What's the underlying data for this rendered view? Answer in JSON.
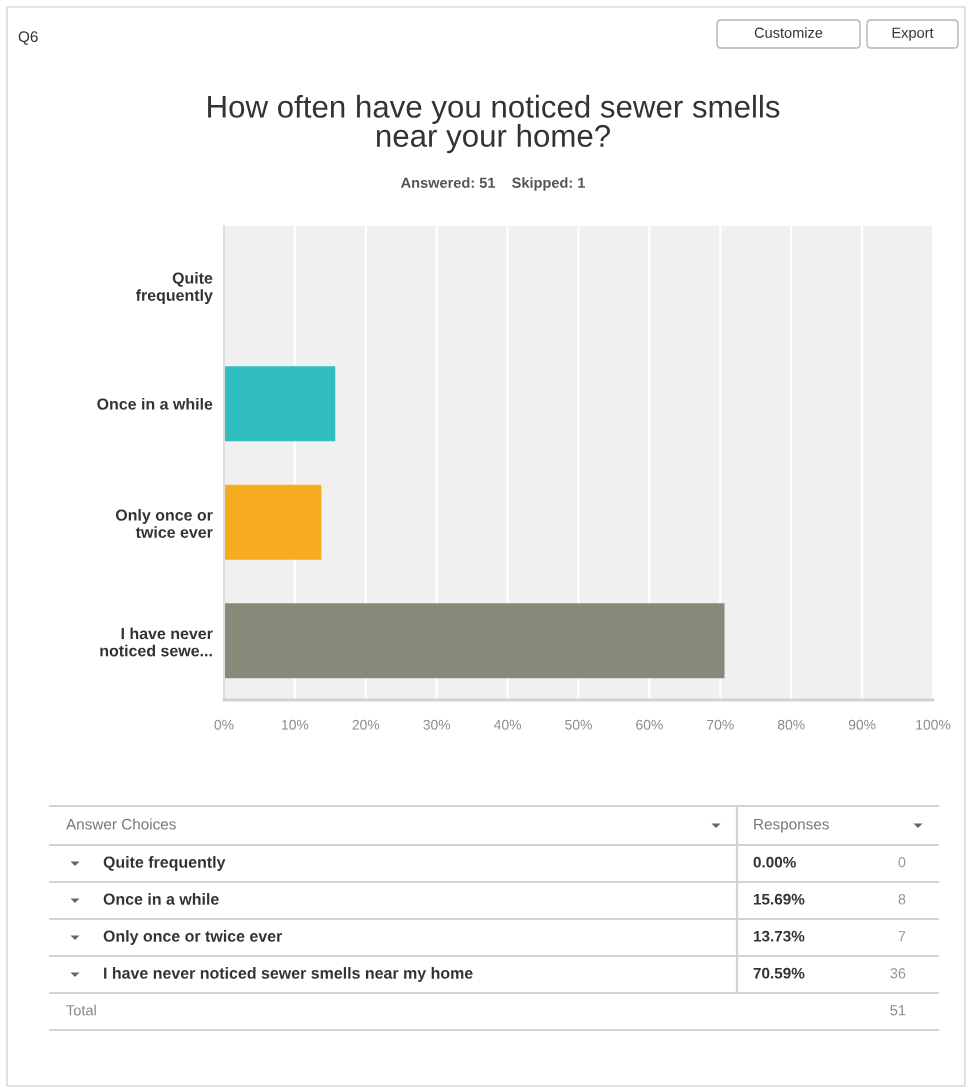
{
  "chart_data": {
    "type": "bar",
    "orientation": "horizontal",
    "title": "How often have you noticed sewer smells\nnear your home?",
    "subtitle": "Answered: 51    Skipped: 1",
    "categories": [
      "Quite\nfrequently",
      "Once in a while",
      "Only once or\ntwice ever",
      "I have never\nnoticed sewe..."
    ],
    "values": [
      0,
      15.69,
      13.73,
      70.59
    ],
    "colors": [
      "#7cc0c4",
      "#32bec0",
      "#f7ab1f",
      "#878a78"
    ],
    "xlim": [
      0,
      100
    ],
    "xticks": [
      {
        "value": 0,
        "label": "0%"
      },
      {
        "value": 10,
        "label": "10%"
      },
      {
        "value": 20,
        "label": "20%"
      },
      {
        "value": 30,
        "label": "30%"
      },
      {
        "value": 40,
        "label": "40%"
      },
      {
        "value": 50,
        "label": "50%"
      },
      {
        "value": 60,
        "label": "60%"
      },
      {
        "value": 70,
        "label": "70%"
      },
      {
        "value": 80,
        "label": "80%"
      },
      {
        "value": 90,
        "label": "90%"
      },
      {
        "value": 100,
        "label": "100%"
      }
    ],
    "grid": "x",
    "annotations": [
      "Q6",
      "Customize",
      "Export",
      "Answer Choices",
      "Responses",
      "Quite frequently",
      "Once in a while",
      "Only once or twice ever",
      "I have never noticed sewer smells near my home",
      "0.00%",
      "15.69%",
      "13.73%",
      "70.59%",
      "0",
      "8",
      "7",
      "36",
      "Total",
      "51"
    ]
  }
}
